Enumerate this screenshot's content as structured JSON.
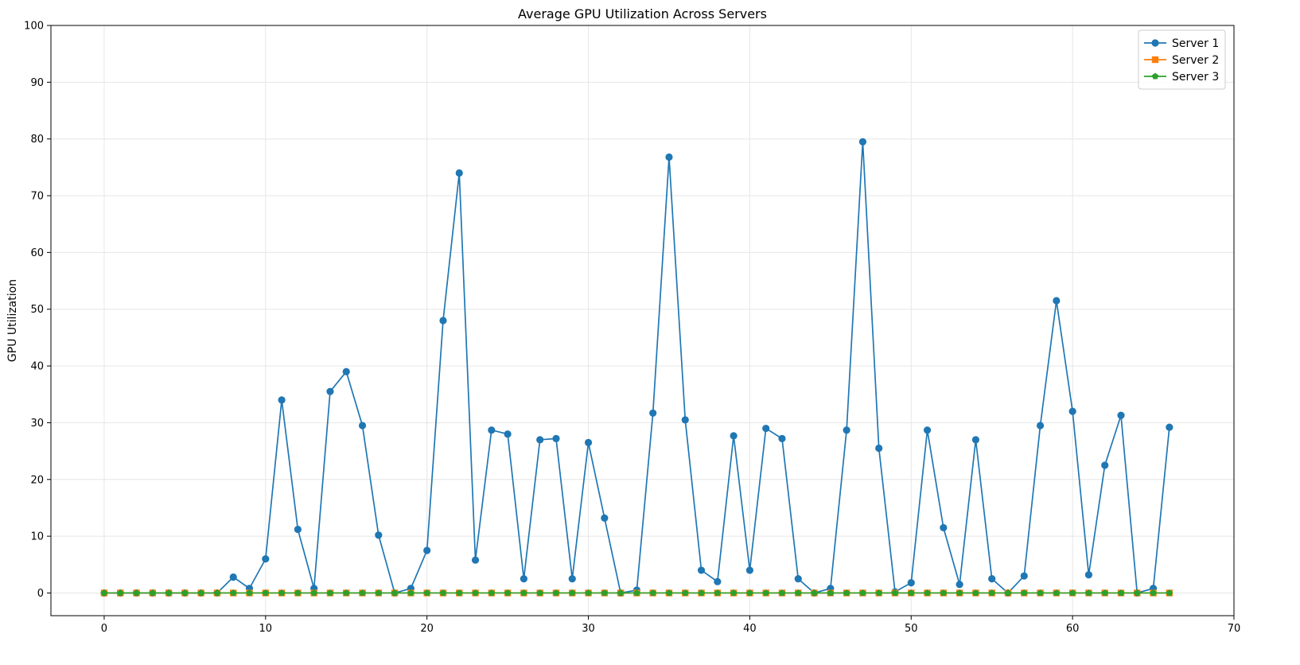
{
  "chart_data": {
    "type": "line",
    "title": "Average GPU Utilization Across Servers",
    "xlabel": "",
    "ylabel": "GPU Utilization",
    "xlim": [
      -3.3,
      70
    ],
    "ylim": [
      -4,
      100
    ],
    "xticks": [
      0,
      10,
      20,
      30,
      40,
      50,
      60,
      70
    ],
    "yticks": [
      0,
      10,
      20,
      30,
      40,
      50,
      60,
      70,
      80,
      90,
      100
    ],
    "grid": true,
    "legend_position": "top-right",
    "x": [
      0,
      1,
      2,
      3,
      4,
      5,
      6,
      7,
      8,
      9,
      10,
      11,
      12,
      13,
      14,
      15,
      16,
      17,
      18,
      19,
      20,
      21,
      22,
      23,
      24,
      25,
      26,
      27,
      28,
      29,
      30,
      31,
      32,
      33,
      34,
      35,
      36,
      37,
      38,
      39,
      40,
      41,
      42,
      43,
      44,
      45,
      46,
      47,
      48,
      49,
      50,
      51,
      52,
      53,
      54,
      55,
      56,
      57,
      58,
      59,
      60,
      61,
      62,
      63,
      64,
      65,
      66
    ],
    "series": [
      {
        "name": "Server 1",
        "color": "#1f77b4",
        "marker": "circle",
        "values": [
          0,
          0,
          0,
          0,
          0,
          0,
          0,
          0,
          2.8,
          0.8,
          6,
          34,
          11.2,
          0.8,
          35.5,
          39,
          29.5,
          10.2,
          0,
          0.8,
          7.5,
          48,
          74,
          5.8,
          28.7,
          28,
          2.5,
          27,
          27.2,
          2.5,
          26.5,
          13.2,
          0,
          0.5,
          31.7,
          76.8,
          30.5,
          4,
          2,
          27.7,
          4,
          29,
          27.2,
          2.5,
          0,
          0.8,
          28.7,
          79.5,
          25.5,
          0.2,
          1.8,
          28.7,
          11.5,
          1.5,
          27,
          2.5,
          0,
          3,
          29.5,
          51.5,
          32,
          3.2,
          22.5,
          31.3,
          0,
          0.8,
          29.2
        ]
      },
      {
        "name": "Server 2",
        "color": "#ff7f0e",
        "marker": "square",
        "values": [
          0,
          0,
          0,
          0,
          0,
          0,
          0,
          0,
          0,
          0,
          0,
          0,
          0,
          0,
          0,
          0,
          0,
          0,
          0,
          0,
          0,
          0,
          0,
          0,
          0,
          0,
          0,
          0,
          0,
          0,
          0,
          0,
          0,
          0,
          0,
          0,
          0,
          0,
          0,
          0,
          0,
          0,
          0,
          0,
          0,
          0,
          0,
          0,
          0,
          0,
          0,
          0,
          0,
          0,
          0,
          0,
          0,
          0,
          0,
          0,
          0,
          0,
          0,
          0,
          0,
          0,
          0
        ]
      },
      {
        "name": "Server 3",
        "color": "#2ca02c",
        "marker": "pentagon",
        "values": [
          0,
          0,
          0,
          0,
          0,
          0,
          0,
          0,
          0,
          0,
          0,
          0,
          0,
          0,
          0,
          0,
          0,
          0,
          0,
          0,
          0,
          0,
          0,
          0,
          0,
          0,
          0,
          0,
          0,
          0,
          0,
          0,
          0,
          0,
          0,
          0,
          0,
          0,
          0,
          0,
          0,
          0,
          0,
          0,
          0,
          0,
          0,
          0,
          0,
          0,
          0,
          0,
          0,
          0,
          0,
          0,
          0,
          0,
          0,
          0,
          0,
          0,
          0,
          0,
          0,
          0,
          0
        ]
      }
    ]
  }
}
